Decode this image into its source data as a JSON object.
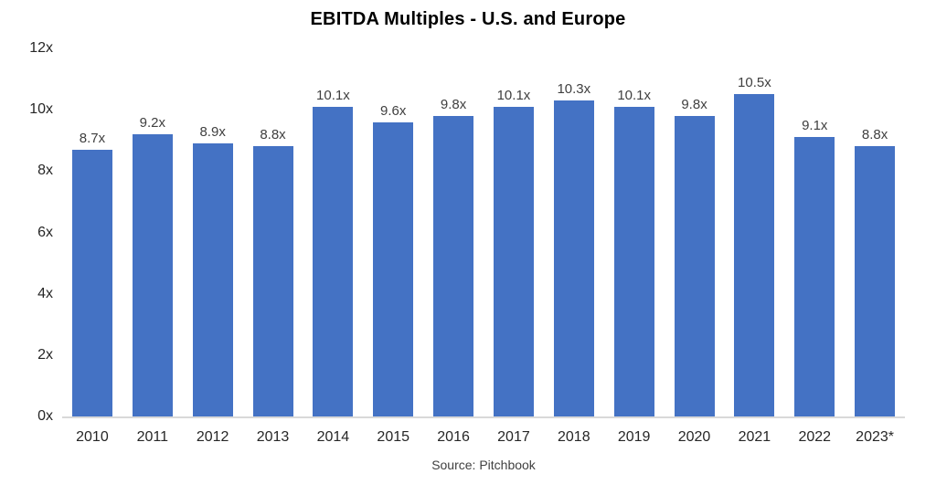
{
  "chart_data": {
    "type": "bar",
    "title": "EBITDA Multiples - U.S. and Europe",
    "source": "Source: Pitchbook",
    "categories": [
      "2010",
      "2011",
      "2012",
      "2013",
      "2014",
      "2015",
      "2016",
      "2017",
      "2018",
      "2019",
      "2020",
      "2021",
      "2022",
      "2023*"
    ],
    "values": [
      8.7,
      9.2,
      8.9,
      8.8,
      10.1,
      9.6,
      9.8,
      10.1,
      10.3,
      10.1,
      9.8,
      10.5,
      9.1,
      8.8
    ],
    "data_labels": [
      "8.7x",
      "9.2x",
      "8.9x",
      "8.8x",
      "10.1x",
      "9.6x",
      "9.8x",
      "10.1x",
      "10.3x",
      "10.1x",
      "9.8x",
      "10.5x",
      "9.1x",
      "8.8x"
    ],
    "xlabel": "",
    "ylabel": "",
    "ylim": [
      0,
      12
    ],
    "y_ticks": [
      "0x",
      "2x",
      "4x",
      "6x",
      "8x",
      "10x",
      "12x"
    ],
    "y_tick_values": [
      0,
      2,
      4,
      6,
      8,
      10,
      12
    ],
    "grid": false,
    "legend_position": "none",
    "bar_color": "#4472C4",
    "axis_line_color": "#D9D9D9"
  }
}
